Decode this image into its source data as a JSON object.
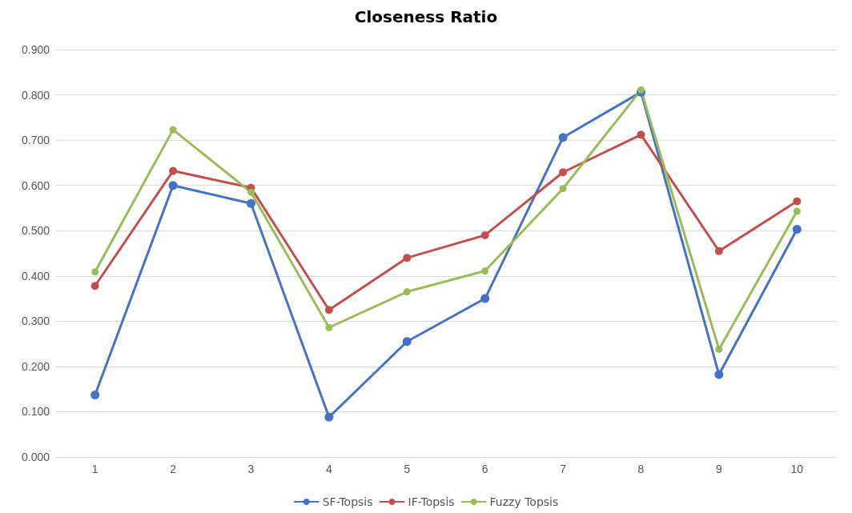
{
  "chart_data": {
    "type": "line",
    "title": "Closeness Ratio",
    "categories": [
      "1",
      "2",
      "3",
      "4",
      "5",
      "6",
      "7",
      "8",
      "9",
      "10"
    ],
    "series": [
      {
        "name": "SF-Topsis",
        "color": "#4472c4",
        "values": [
          0.137,
          0.6,
          0.56,
          0.088,
          0.255,
          0.35,
          0.706,
          0.806,
          0.182,
          0.503
        ]
      },
      {
        "name": "IF-Topsis",
        "color": "#c0504d",
        "values": [
          0.378,
          0.632,
          0.595,
          0.325,
          0.44,
          0.49,
          0.629,
          0.712,
          0.455,
          0.565
        ]
      },
      {
        "name": "Fuzzy Topsis",
        "color": "#9bbb59",
        "values": [
          0.409,
          0.723,
          0.585,
          0.286,
          0.365,
          0.411,
          0.593,
          0.811,
          0.238,
          0.543
        ]
      }
    ],
    "ylim": [
      0,
      0.9
    ],
    "yticks": [
      {
        "value": 0,
        "label": "0.000"
      },
      {
        "value": 0.1,
        "label": "0.100"
      },
      {
        "value": 0.2,
        "label": "0.200"
      },
      {
        "value": 0.3,
        "label": "0.300"
      },
      {
        "value": 0.4,
        "label": "0.400"
      },
      {
        "value": 0.5,
        "label": "0.500"
      },
      {
        "value": 0.6,
        "label": "0.600"
      },
      {
        "value": 0.7,
        "label": "0.700"
      },
      {
        "value": 0.8,
        "label": "0.800"
      },
      {
        "value": 0.9,
        "label": "0.900"
      }
    ],
    "grid": "y",
    "legend": "bottom",
    "marker": "circle",
    "line_style": "solid"
  }
}
